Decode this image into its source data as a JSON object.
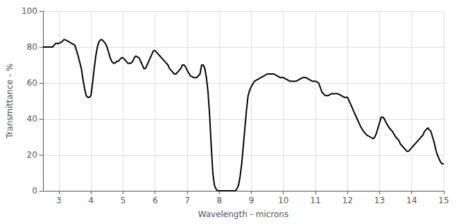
{
  "chart_data": {
    "type": "line",
    "xlabel": "Wavelength - microns",
    "ylabel": "Transmittance - %",
    "xlim": [
      2.5,
      15
    ],
    "ylim": [
      0,
      100
    ],
    "xticks": [
      3,
      4,
      5,
      6,
      7,
      8,
      9,
      10,
      11,
      12,
      13,
      14,
      15
    ],
    "yticks": [
      0,
      20,
      40,
      60,
      80,
      100
    ],
    "grid": true,
    "color": "#000000",
    "x": [
      2.5,
      2.6,
      2.7,
      2.8,
      2.85,
      2.9,
      3.0,
      3.1,
      3.15,
      3.2,
      3.3,
      3.4,
      3.5,
      3.6,
      3.7,
      3.75,
      3.8,
      3.85,
      3.9,
      3.95,
      4.0,
      4.05,
      4.1,
      4.15,
      4.2,
      4.25,
      4.3,
      4.35,
      4.4,
      4.45,
      4.5,
      4.55,
      4.6,
      4.65,
      4.7,
      4.75,
      4.8,
      4.85,
      4.9,
      4.95,
      5.0,
      5.05,
      5.1,
      5.15,
      5.2,
      5.25,
      5.3,
      5.35,
      5.4,
      5.5,
      5.6,
      5.65,
      5.7,
      5.75,
      5.8,
      5.85,
      5.9,
      5.95,
      6.0,
      6.05,
      6.1,
      6.15,
      6.2,
      6.25,
      6.3,
      6.35,
      6.4,
      6.45,
      6.5,
      6.55,
      6.6,
      6.65,
      6.7,
      6.75,
      6.8,
      6.85,
      6.9,
      6.95,
      7.0,
      7.1,
      7.2,
      7.3,
      7.4,
      7.45,
      7.5,
      7.55,
      7.6,
      7.65,
      7.7,
      7.75,
      7.8,
      7.85,
      7.9,
      7.95,
      8.0,
      8.05,
      8.1,
      8.15,
      8.2,
      8.25,
      8.3,
      8.35,
      8.4,
      8.45,
      8.5,
      8.55,
      8.6,
      8.65,
      8.7,
      8.75,
      8.8,
      8.85,
      8.9,
      8.95,
      9.0,
      9.1,
      9.2,
      9.3,
      9.4,
      9.5,
      9.6,
      9.7,
      9.8,
      9.9,
      10.0,
      10.1,
      10.2,
      10.3,
      10.4,
      10.5,
      10.6,
      10.7,
      10.8,
      10.9,
      11.0,
      11.1,
      11.2,
      11.3,
      11.4,
      11.5,
      11.6,
      11.7,
      11.8,
      11.9,
      12.0,
      12.1,
      12.2,
      12.3,
      12.4,
      12.5,
      12.6,
      12.7,
      12.8,
      12.85,
      12.9,
      12.95,
      13.0,
      13.05,
      13.1,
      13.15,
      13.2,
      13.3,
      13.4,
      13.5,
      13.6,
      13.65,
      13.7,
      13.75,
      13.8,
      13.85,
      13.9,
      13.95,
      14.0,
      14.05,
      14.1,
      14.15,
      14.2,
      14.25,
      14.3,
      14.35,
      14.4,
      14.45,
      14.5,
      14.55,
      14.6,
      14.65,
      14.7,
      14.75,
      14.8,
      14.85,
      14.9,
      14.95,
      15.0
    ],
    "values": [
      80,
      80,
      80,
      80,
      81,
      82,
      82,
      83,
      84,
      84,
      83,
      82,
      81,
      75,
      68,
      62,
      57,
      53,
      52,
      52,
      53,
      60,
      68,
      75,
      80,
      83,
      84,
      84,
      83,
      82,
      80,
      77,
      74,
      72,
      71,
      71,
      72,
      72,
      73,
      74,
      74,
      73,
      72,
      71,
      71,
      71,
      72,
      74,
      75,
      74,
      70,
      68,
      68,
      70,
      72,
      74,
      76,
      78,
      78,
      77,
      76,
      75,
      74,
      73,
      72,
      71,
      70,
      68,
      67,
      66,
      65,
      65,
      66,
      67,
      68,
      70,
      70,
      69,
      67,
      64,
      63,
      63,
      65,
      70,
      70,
      68,
      63,
      55,
      42,
      25,
      10,
      3,
      1,
      0,
      0,
      0,
      0,
      0,
      0,
      0,
      0,
      0,
      0,
      0,
      0,
      1,
      3,
      8,
      15,
      25,
      35,
      45,
      53,
      56,
      58,
      61,
      62,
      63,
      64,
      65,
      65,
      65,
      64,
      63,
      63,
      62,
      61,
      61,
      61,
      62,
      63,
      63,
      62,
      61,
      61,
      60,
      55,
      53,
      53,
      54,
      54,
      54,
      53,
      52,
      52,
      48,
      44,
      40,
      36,
      33,
      31,
      30,
      29,
      30,
      32,
      35,
      38,
      41,
      41,
      40,
      38,
      35,
      33,
      30,
      28,
      26,
      25,
      24,
      23,
      22,
      22,
      23,
      24,
      25,
      26,
      27,
      28,
      29,
      30,
      31,
      33,
      34,
      35,
      34,
      33,
      30,
      27,
      23,
      20,
      18,
      16,
      15,
      15
    ]
  }
}
